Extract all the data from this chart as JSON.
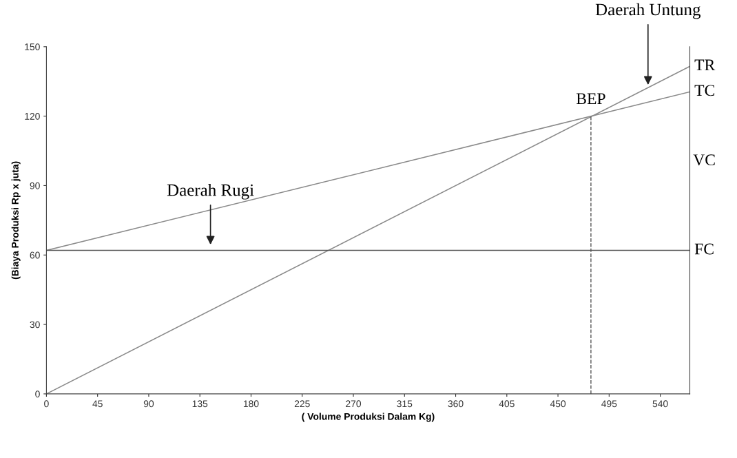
{
  "chart_data": {
    "type": "line",
    "xlabel": "( Volume Produksi Dalam Kg)",
    "ylabel": "(Biaya Produksi Rp x juta)",
    "series": [
      {
        "name": "TR",
        "color": "#8a8a8a",
        "values": [
          0,
          141.5
        ]
      },
      {
        "name": "TC",
        "color": "#8a8a8a",
        "values": [
          62,
          130.5
        ]
      },
      {
        "name": "FC",
        "color": "#555555",
        "values": [
          62,
          62
        ]
      }
    ],
    "x": [
      0,
      566
    ],
    "xlim": [
      0,
      566
    ],
    "ylim": [
      0,
      150
    ],
    "xticks": [
      0,
      45,
      90,
      135,
      180,
      225,
      270,
      315,
      360,
      405,
      450,
      495,
      540
    ],
    "yticks": [
      0,
      30,
      60,
      90,
      120,
      150
    ],
    "ref_lines": [
      {
        "axis": "x",
        "value": 479,
        "label": "BEP",
        "color": "#555555",
        "line_style": "dashed"
      }
    ],
    "annotations": [
      "Daerah Rugi",
      "Daerah Untung",
      "VC"
    ],
    "grid": false,
    "legend": false,
    "marker": "none",
    "line_style": "solid"
  }
}
